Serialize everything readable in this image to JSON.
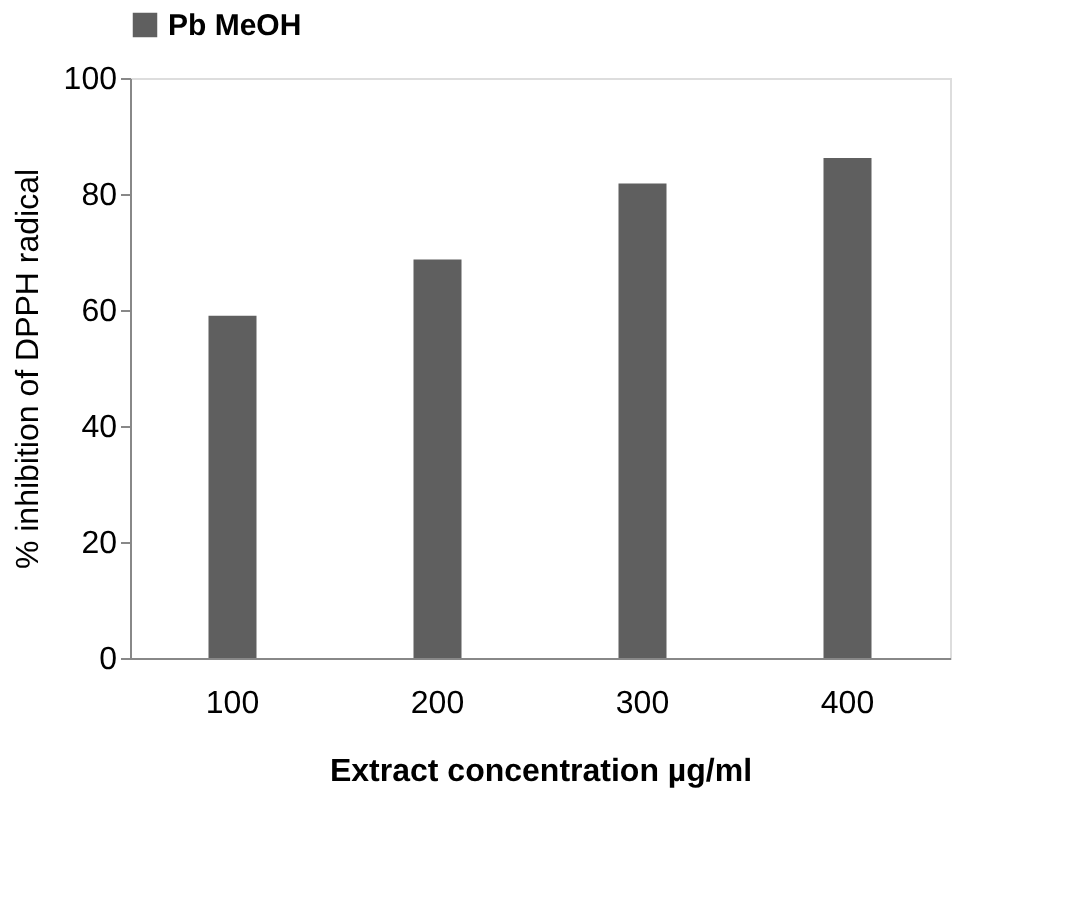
{
  "chart_data": {
    "type": "bar",
    "categories": [
      "100",
      "200",
      "300",
      "400"
    ],
    "xlabel": "Extract concentration µg/ml",
    "ylabel": "% inhibition of DPPH radical",
    "series": [
      {
        "name": "Pb MeOH",
        "color": "#5f5f5f",
        "values": [
          59,
          68.7,
          81.8,
          86.2
        ]
      }
    ],
    "ylim": [
      0,
      100
    ],
    "yticks": [
      0,
      20,
      40,
      60,
      80,
      100
    ],
    "grid": false,
    "legend": "top"
  }
}
